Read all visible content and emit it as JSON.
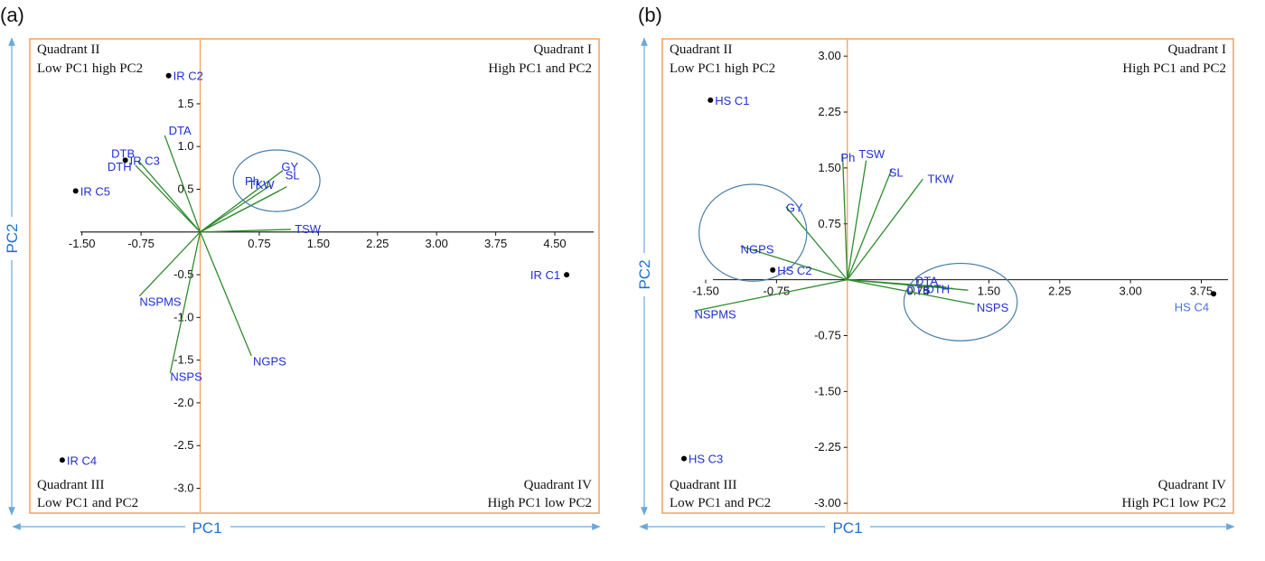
{
  "panels": [
    {
      "id": "a",
      "label": "(a)",
      "quadrants": {
        "q1": [
          "Quadrant I",
          "High PC1 and PC2"
        ],
        "q2": [
          "Quadrant II",
          "Low PC1 high PC2"
        ],
        "q3": [
          "Quadrant III",
          "Low PC1 and PC2"
        ],
        "q4": [
          "Quadrant IV",
          "High PC1 low PC2"
        ]
      },
      "xlabel": "PC1",
      "ylabel": "PC2"
    },
    {
      "id": "b",
      "label": "(b)",
      "quadrants": {
        "q1": [
          "Quadrant I",
          "High PC1 and PC2"
        ],
        "q2": [
          "Quadrant II",
          "Low PC1 high PC2"
        ],
        "q3": [
          "Quadrant III",
          "Low PC1 and PC2"
        ],
        "q4": [
          "Quadrant IV",
          "High PC1 low PC2"
        ]
      },
      "xlabel": "PC1",
      "ylabel": "PC2"
    }
  ],
  "colors": {
    "frame": "#f0a060",
    "vector": "#2e8b2e",
    "label": "#1f2fd6",
    "axis_arrow": "#6aa8dc",
    "ellipse": "#4a7ea8",
    "point": "#000000",
    "text": "#111111"
  },
  "chart_data": [
    {
      "type": "scatter",
      "subtype": "biplot",
      "xlabel": "PC1",
      "ylabel": "PC2",
      "xlim": [
        -2.15,
        5.05
      ],
      "ylim": [
        -3.28,
        2.25
      ],
      "xticks": [
        -1.5,
        -0.75,
        0.75,
        1.5,
        2.25,
        3.0,
        3.75,
        4.5
      ],
      "xtick_labels": [
        "-1.50",
        "-0.75",
        "0.75",
        "1.50",
        "2.25",
        "3.00",
        "3.75",
        "4.50"
      ],
      "yticks": [
        1.5,
        1.0,
        0.5,
        -0.5,
        -1.0,
        -1.5,
        -2.0,
        -2.5,
        -3.0
      ],
      "ytick_labels": [
        "1.5",
        "1.0",
        "0.5",
        "-0.5",
        "-1.0",
        "-1.5",
        "-2.0",
        "-2.5",
        "-3.0"
      ],
      "vectors": [
        {
          "name": "DTA",
          "x": -0.45,
          "y": 1.13,
          "label_dx": 0.05,
          "label_dy": 0.05,
          "anchor": "start"
        },
        {
          "name": "DTB",
          "x": -0.78,
          "y": 0.83,
          "label_dx": -0.05,
          "label_dy": 0.08,
          "anchor": "end"
        },
        {
          "name": "DTH",
          "x": -0.82,
          "y": 0.78,
          "label_dx": -0.05,
          "label_dy": -0.02,
          "anchor": "end"
        },
        {
          "name": "Ph",
          "x": 0.9,
          "y": 0.55,
          "label_dx": -0.15,
          "label_dy": 0.04,
          "anchor": "end"
        },
        {
          "name": "GY",
          "x": 1.05,
          "y": 0.72,
          "label_dx": -0.02,
          "label_dy": 0.04,
          "anchor": "start"
        },
        {
          "name": "TKW",
          "x": 1.0,
          "y": 0.48,
          "label_dx": -0.06,
          "label_dy": 0.07,
          "anchor": "end"
        },
        {
          "name": "SL",
          "x": 1.1,
          "y": 0.53,
          "label_dx": -0.02,
          "label_dy": 0.13,
          "anchor": "start"
        },
        {
          "name": "TSW",
          "x": 1.15,
          "y": 0.03,
          "label_dx": 0.05,
          "label_dy": 0.0,
          "anchor": "start"
        },
        {
          "name": "NSPMS",
          "x": -0.77,
          "y": -0.75,
          "label_dx": 0.0,
          "label_dy": -0.07,
          "anchor": "start"
        },
        {
          "name": "NSPS",
          "x": -0.38,
          "y": -1.65,
          "label_dx": 0.0,
          "label_dy": -0.05,
          "anchor": "start"
        },
        {
          "name": "NGPS",
          "x": 0.65,
          "y": -1.45,
          "label_dx": 0.02,
          "label_dy": -0.07,
          "anchor": "start"
        }
      ],
      "points": [
        {
          "name": "IR C2",
          "x": -0.4,
          "y": 1.83,
          "color": "#1f2fd6"
        },
        {
          "name": "IR C3",
          "x": -0.95,
          "y": 0.84,
          "color": "#1f2fd6"
        },
        {
          "name": "IR C5",
          "x": -1.58,
          "y": 0.48,
          "color": "#1f2fd6"
        },
        {
          "name": "IR C1",
          "x": 4.65,
          "y": -0.5,
          "color": "#1f2fd6",
          "label_left": true
        },
        {
          "name": "IR C4",
          "x": -1.75,
          "y": -2.67,
          "color": "#1f2fd6"
        }
      ],
      "ellipses": [
        {
          "cx": 0.97,
          "cy": 0.6,
          "rx": 0.55,
          "ry": 0.36
        }
      ]
    },
    {
      "type": "scatter",
      "subtype": "biplot",
      "xlabel": "PC1",
      "ylabel": "PC2",
      "xlim": [
        -1.95,
        4.08
      ],
      "ylim": [
        -3.12,
        3.22
      ],
      "xticks": [
        -1.5,
        -0.75,
        0.75,
        1.5,
        2.25,
        3.0,
        3.75
      ],
      "xtick_labels": [
        "-1.50",
        "-0.75",
        "0.75",
        "1.50",
        "2.25",
        "3.00",
        "3.75"
      ],
      "yticks": [
        3.0,
        2.25,
        1.5,
        0.75,
        -0.75,
        -1.5,
        -2.25,
        -3.0
      ],
      "ytick_labels": [
        "3.00",
        "2.25",
        "1.50",
        "0.75",
        "-0.75",
        "-1.50",
        "-2.25",
        "-3.00"
      ],
      "vectors": [
        {
          "name": "Ph",
          "x": -0.05,
          "y": 1.68,
          "label_dx": -0.02,
          "label_dy": -0.05,
          "anchor": "start"
        },
        {
          "name": "TSW",
          "x": 0.2,
          "y": 1.6,
          "label_dx": -0.08,
          "label_dy": 0.08,
          "anchor": "start"
        },
        {
          "name": "SL",
          "x": 0.47,
          "y": 1.48,
          "label_dx": -0.03,
          "label_dy": -0.05,
          "anchor": "start"
        },
        {
          "name": "TKW",
          "x": 0.8,
          "y": 1.35,
          "label_dx": 0.05,
          "label_dy": 0.0,
          "anchor": "start"
        },
        {
          "name": "GY",
          "x": -0.65,
          "y": 0.98,
          "label_dx": 0.0,
          "label_dy": -0.02,
          "anchor": "start"
        },
        {
          "name": "NGPS",
          "x": -1.13,
          "y": 0.45,
          "label_dx": 0.0,
          "label_dy": -0.05,
          "anchor": "start"
        },
        {
          "name": "NSPMS",
          "x": -1.62,
          "y": -0.42,
          "label_dx": 0.0,
          "label_dy": -0.05,
          "anchor": "start"
        },
        {
          "name": "DTA",
          "x": 1.05,
          "y": -0.1,
          "label_dx": -0.33,
          "label_dy": 0.08,
          "anchor": "start"
        },
        {
          "name": "DTB",
          "x": 1.13,
          "y": -0.12,
          "label_dx": -0.5,
          "label_dy": -0.02,
          "anchor": "start"
        },
        {
          "name": "DTH",
          "x": 1.28,
          "y": -0.14,
          "label_dx": -0.45,
          "label_dy": 0.01,
          "anchor": "start"
        },
        {
          "name": "NSPS",
          "x": 1.35,
          "y": -0.33,
          "label_dx": 0.02,
          "label_dy": -0.05,
          "anchor": "start"
        }
      ],
      "points": [
        {
          "name": "HS C1",
          "x": -1.45,
          "y": 2.41,
          "color": "#1f2fd6"
        },
        {
          "name": "HS C2",
          "x": -0.79,
          "y": 0.13,
          "color": "#1f2fd6"
        },
        {
          "name": "HS C3",
          "x": -1.73,
          "y": -2.4,
          "color": "#1f2fd6"
        },
        {
          "name": "HS C4",
          "x": 3.88,
          "y": -0.19,
          "color": "#4a6ee0",
          "label_below_left": true
        }
      ],
      "ellipses": [
        {
          "cx": -1.0,
          "cy": 0.63,
          "rx": 0.57,
          "ry": 0.65
        },
        {
          "cx": 1.2,
          "cy": -0.3,
          "rx": 0.6,
          "ry": 0.52
        }
      ]
    }
  ]
}
